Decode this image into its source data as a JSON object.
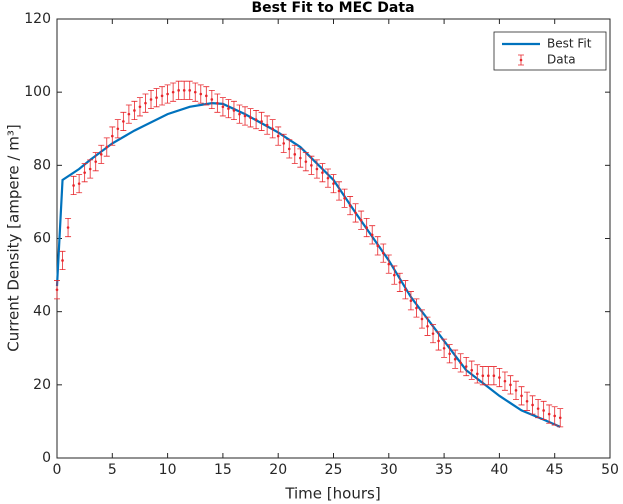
{
  "chart_data": {
    "type": "line",
    "title": "Best Fit to MEC Data",
    "xlabel": "Time [hours]",
    "ylabel": "Current Density [ampere / m³]",
    "xlim": [
      0,
      50
    ],
    "xticks": [
      0,
      5,
      10,
      15,
      20,
      25,
      30,
      35,
      40,
      45,
      50
    ],
    "ylim": [
      0,
      120
    ],
    "yticks": [
      0,
      20,
      40,
      60,
      80,
      100,
      120
    ],
    "grid": false,
    "legend": "upper right",
    "series": [
      {
        "name": "Best Fit",
        "type": "line",
        "color": "#0072bd",
        "x": [
          0,
          0.5,
          2,
          3,
          5,
          7,
          10,
          12,
          14,
          15,
          17,
          20,
          22,
          25,
          27,
          30,
          32,
          35,
          37,
          40,
          42,
          44,
          45.5
        ],
        "values": [
          47,
          76,
          79,
          81.5,
          86,
          89.5,
          94,
          96,
          97,
          96.8,
          94,
          89,
          85,
          76,
          67,
          54,
          44,
          32,
          24,
          17,
          13,
          10.5,
          8.5
        ]
      },
      {
        "name": "Data",
        "type": "errorbar",
        "color": "#e8262b",
        "x": [
          0,
          0.5,
          1,
          1.5,
          2,
          2.5,
          3,
          3.5,
          4,
          4.5,
          5,
          5.5,
          6,
          6.5,
          7,
          7.5,
          8,
          8.5,
          9,
          9.5,
          10,
          10.5,
          11,
          11.5,
          12,
          12.5,
          13,
          13.5,
          14,
          14.5,
          15,
          15.5,
          16,
          16.5,
          17,
          17.5,
          18,
          18.5,
          19,
          19.5,
          20,
          20.5,
          21,
          21.5,
          22,
          22.5,
          23,
          23.5,
          24,
          24.5,
          25,
          25.5,
          26,
          26.5,
          27,
          27.5,
          28,
          28.5,
          29,
          29.5,
          30,
          30.5,
          31,
          31.5,
          32,
          32.5,
          33,
          33.5,
          34,
          34.5,
          35,
          35.5,
          36,
          36.5,
          37,
          37.5,
          38,
          38.5,
          39,
          39.5,
          40,
          40.5,
          41,
          41.5,
          42,
          42.5,
          43,
          43.5,
          44,
          44.5,
          45,
          45.5
        ],
        "values": [
          46,
          54,
          63,
          74.5,
          75,
          78,
          79,
          81,
          83,
          85,
          88,
          90,
          92,
          94,
          95,
          96,
          97,
          98,
          98.5,
          99,
          99.5,
          100,
          100.5,
          100.5,
          100.5,
          100,
          99.5,
          99,
          98,
          97,
          96,
          95.5,
          95,
          94,
          93.5,
          93,
          92.5,
          92,
          91,
          90,
          88,
          86,
          84.5,
          83,
          82,
          81,
          80,
          79,
          78,
          76.5,
          75,
          73,
          71,
          69,
          67,
          65,
          63,
          61,
          58,
          56,
          53,
          50,
          48,
          46,
          43,
          41,
          38,
          36,
          34,
          32,
          30,
          28.5,
          27,
          26,
          25,
          24,
          23,
          22.5,
          22.5,
          22.5,
          22,
          21,
          20,
          18.5,
          17,
          15.5,
          14.5,
          13.5,
          13,
          12,
          11.5,
          11
        ],
        "errors": [
          2.5,
          2.5,
          2.5,
          2.5,
          2.5,
          2.5,
          2.5,
          2.5,
          2.5,
          2.5,
          2.5,
          2.5,
          2.5,
          2.5,
          2.5,
          2.5,
          2.5,
          2.5,
          2.5,
          2.5,
          2.5,
          2.5,
          2.5,
          2.5,
          2.5,
          2.5,
          2.5,
          2.5,
          2.5,
          2.5,
          2.5,
          2.5,
          2.5,
          2.5,
          2.5,
          2.5,
          2.5,
          2.5,
          2.5,
          2.5,
          2.5,
          2.5,
          2.5,
          2.5,
          2.5,
          2.5,
          2.5,
          2.5,
          2.5,
          2.5,
          2.5,
          2.5,
          2.5,
          2.5,
          2.5,
          2.5,
          2.5,
          2.5,
          2.5,
          2.5,
          2.5,
          2.5,
          2.5,
          2.5,
          2.5,
          2.5,
          2.5,
          2.5,
          2.5,
          2.5,
          2.5,
          2.5,
          2.5,
          2.5,
          2.5,
          2.5,
          2.5,
          2.5,
          2.5,
          2.5,
          2.5,
          2.5,
          2.5,
          2.5,
          2.5,
          2.5,
          2.5,
          2.5,
          2.5,
          2.5,
          2.5,
          2.5
        ]
      }
    ]
  }
}
